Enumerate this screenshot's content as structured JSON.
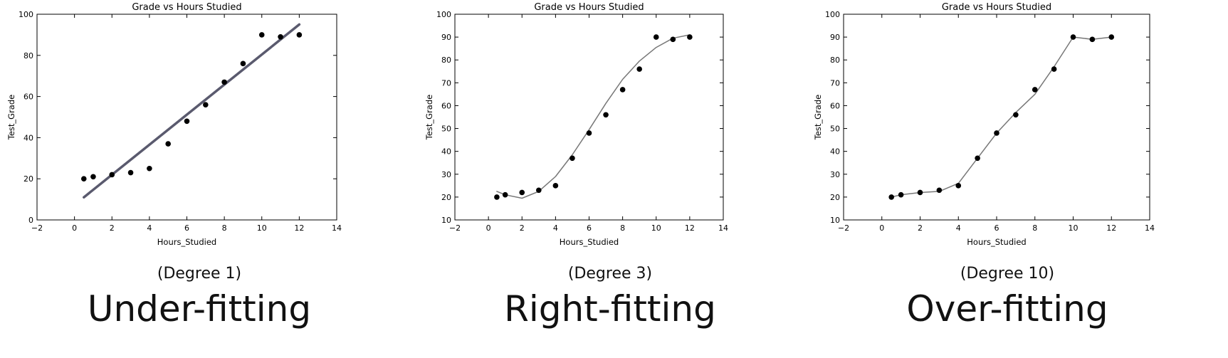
{
  "chart_data": [
    {
      "type": "scatter",
      "title": "Grade vs Hours Studied",
      "xlabel": "Hours_Studied",
      "ylabel": "Test_Grade",
      "xlim": [
        -2,
        14
      ],
      "ylim": [
        0,
        100
      ],
      "xticks": [
        -2,
        0,
        2,
        4,
        6,
        8,
        10,
        12,
        14
      ],
      "yticks": [
        0,
        20,
        40,
        60,
        80,
        100
      ],
      "grid": false,
      "caption_degree": "(Degree 1)",
      "caption_fit": "Under-fitting",
      "fit_color": "#5a5a6e",
      "series": [
        {
          "kind": "points",
          "x": [
            0.5,
            1,
            2,
            3,
            4,
            5,
            6,
            7,
            8,
            9,
            10,
            11,
            12
          ],
          "y": [
            20,
            21,
            22,
            23,
            25,
            37,
            48,
            56,
            67,
            76,
            90,
            89,
            90
          ]
        },
        {
          "kind": "fit",
          "x": [
            0.5,
            12
          ],
          "y": [
            11,
            95
          ]
        }
      ]
    },
    {
      "type": "scatter",
      "title": "Grade vs Hours Studied",
      "xlabel": "Hours_Studied",
      "ylabel": "Test_Grade",
      "xlim": [
        -2,
        14
      ],
      "ylim": [
        10,
        100
      ],
      "xticks": [
        -2,
        0,
        2,
        4,
        6,
        8,
        10,
        12,
        14
      ],
      "yticks": [
        10,
        20,
        30,
        40,
        50,
        60,
        70,
        80,
        90,
        100
      ],
      "grid": false,
      "caption_degree": "(Degree 3)",
      "caption_fit": "Right-fitting",
      "fit_color": "#777777",
      "series": [
        {
          "kind": "points",
          "x": [
            0.5,
            1,
            2,
            3,
            4,
            5,
            6,
            7,
            8,
            9,
            10,
            11,
            12
          ],
          "y": [
            20,
            21,
            22,
            23,
            25,
            37,
            48,
            56,
            67,
            76,
            90,
            89,
            90
          ]
        },
        {
          "kind": "fit",
          "x": [
            0.5,
            1,
            2,
            3,
            4,
            5,
            6,
            7,
            8,
            9,
            10,
            11,
            12
          ],
          "y": [
            22.5,
            21,
            19.5,
            22.5,
            29,
            38.5,
            49.5,
            61,
            71.5,
            79.5,
            85.5,
            89.5,
            91
          ]
        }
      ]
    },
    {
      "type": "scatter",
      "title": "Grade vs Hours Studied",
      "xlabel": "Hours_Studied",
      "ylabel": "Test_Grade",
      "xlim": [
        -2,
        14
      ],
      "ylim": [
        10,
        100
      ],
      "xticks": [
        -2,
        0,
        2,
        4,
        6,
        8,
        10,
        12,
        14
      ],
      "yticks": [
        10,
        20,
        30,
        40,
        50,
        60,
        70,
        80,
        90,
        100
      ],
      "grid": false,
      "caption_degree": "(Degree 10)",
      "caption_fit": "Over-fitting",
      "fit_color": "#777777",
      "series": [
        {
          "kind": "points",
          "x": [
            0.5,
            1,
            2,
            3,
            4,
            5,
            6,
            7,
            8,
            9,
            10,
            11,
            12
          ],
          "y": [
            20,
            21,
            22,
            23,
            25,
            37,
            48,
            56,
            67,
            76,
            90,
            89,
            90
          ]
        },
        {
          "kind": "fit",
          "x": [
            0.5,
            1,
            2,
            3,
            4,
            5,
            6,
            7,
            8,
            9,
            10,
            11,
            12
          ],
          "y": [
            20,
            21,
            22,
            22.5,
            26,
            37,
            48,
            57,
            65,
            77,
            90,
            89,
            90
          ]
        }
      ]
    }
  ]
}
